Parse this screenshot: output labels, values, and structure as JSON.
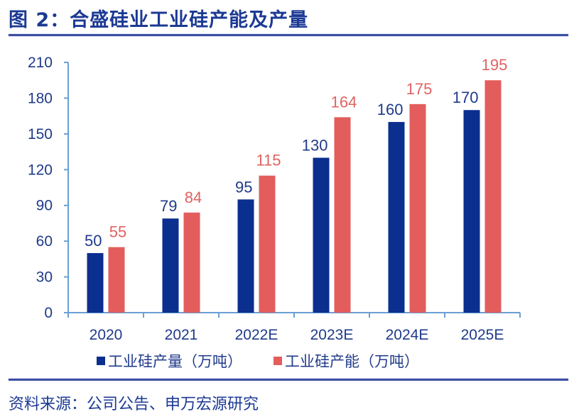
{
  "header": {
    "title": "图 2：合盛硅业工业硅产能及产量"
  },
  "footer": {
    "source": "资料来源：公司公告、申万宏源研究"
  },
  "chart_data": {
    "type": "bar",
    "title": "合盛硅业工业硅产能及产量",
    "xlabel": "",
    "ylabel": "",
    "categories": [
      "2020",
      "2021",
      "2022E",
      "2023E",
      "2024E",
      "2025E"
    ],
    "series": [
      {
        "name": "工业硅产量（万吨）",
        "color": "#0b2f8f",
        "label_color": "#1f3a8a",
        "values": [
          50,
          79,
          95,
          130,
          160,
          170
        ]
      },
      {
        "name": "工业硅产能（万吨）",
        "color": "#e35d5d",
        "label_color": "#e06262",
        "values": [
          55,
          84,
          115,
          164,
          175,
          195
        ]
      }
    ],
    "ylim": [
      0,
      210
    ],
    "yticks": [
      0,
      30,
      60,
      90,
      120,
      150,
      180,
      210
    ],
    "grid": false,
    "legend_position": "bottom",
    "axis_color": "#6a9fd4"
  }
}
